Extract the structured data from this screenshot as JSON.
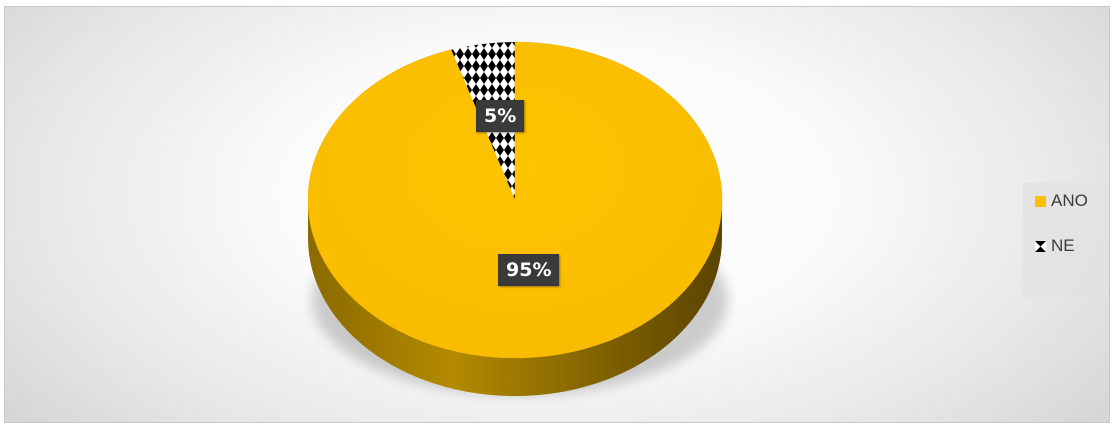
{
  "chart_data": {
    "type": "pie",
    "style": "3d",
    "slices": [
      {
        "name": "ANO",
        "value": 95,
        "label": "95%",
        "color": "#FFC000",
        "pattern": "solid"
      },
      {
        "name": "NE",
        "value": 5,
        "label": "5%",
        "color": "#000000",
        "pattern": "diamond-checker"
      }
    ],
    "legend_position": "right",
    "colors": {
      "side": "#A87F00",
      "label_bg": "#3a3a3a",
      "background": "#f4f4f4"
    }
  }
}
